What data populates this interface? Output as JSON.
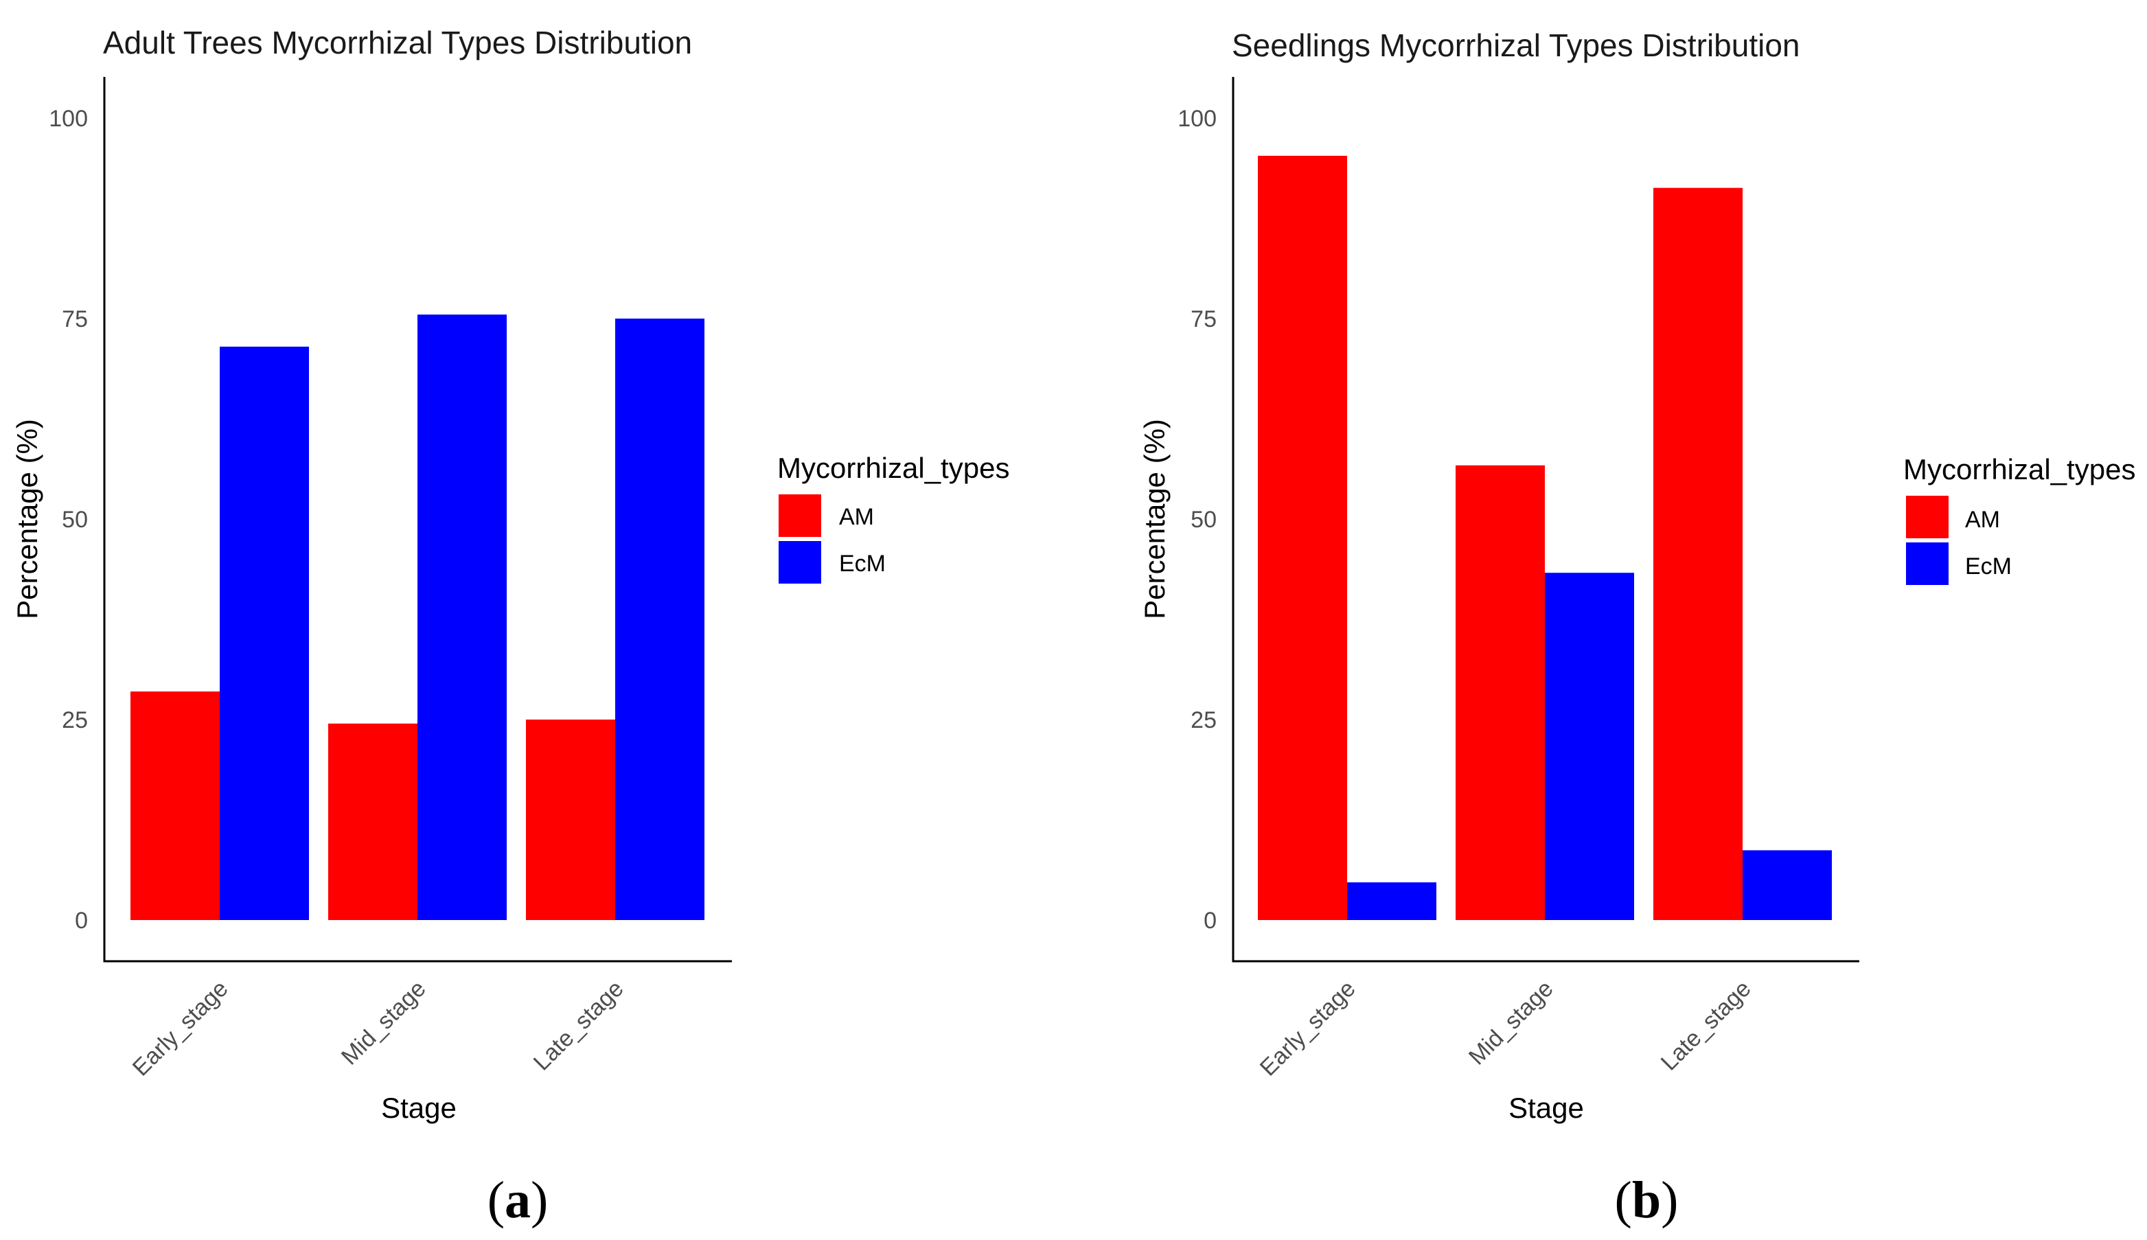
{
  "chart_data": [
    {
      "type": "bar",
      "panel_label": "a",
      "title": "Adult Trees Mycorrhizal Types Distribution",
      "xlabel": "Stage",
      "ylabel": "Percentage (%)",
      "categories": [
        "Early_stage",
        "Mid_stage",
        "Late_stage"
      ],
      "series": [
        {
          "name": "AM",
          "color": "#ff0000",
          "values": [
            28.5,
            24.5,
            25.0
          ]
        },
        {
          "name": "EcM",
          "color": "#0000ff",
          "values": [
            71.5,
            75.5,
            75.0
          ]
        }
      ],
      "yticks": [
        "0",
        "25",
        "50",
        "75",
        "100"
      ],
      "ylim": [
        -5,
        105
      ],
      "legend_title": "Mycorrhizal_types",
      "legend_position": "right",
      "grid": false
    },
    {
      "type": "bar",
      "panel_label": "b",
      "title": "Seedlings Mycorrhizal Types Distribution",
      "xlabel": "Stage",
      "ylabel": "Percentage (%)",
      "categories": [
        "Early_stage",
        "Mid_stage",
        "Late_stage"
      ],
      "series": [
        {
          "name": "AM",
          "color": "#ff0000",
          "values": [
            95.3,
            56.7,
            91.3
          ]
        },
        {
          "name": "EcM",
          "color": "#0000ff",
          "values": [
            4.7,
            43.3,
            8.7
          ]
        }
      ],
      "yticks": [
        "0",
        "25",
        "50",
        "75",
        "100"
      ],
      "ylim": [
        -5,
        105
      ],
      "legend_title": "Mycorrhizal_types",
      "legend_position": "right",
      "grid": false
    }
  ]
}
